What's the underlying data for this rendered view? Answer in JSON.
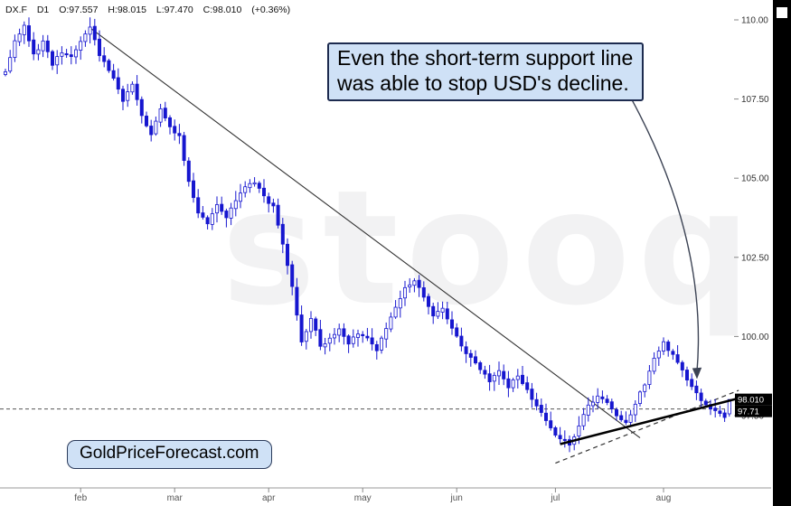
{
  "header": {
    "symbol": "DX.F",
    "interval": "D1",
    "open": "O:97.557",
    "high": "H:98.015",
    "low": "L:97.470",
    "close": "C:98.010",
    "change": "(+0.36%)"
  },
  "annotation": {
    "line1": "Even the short-term support line",
    "line2": "was able to stop USD's decline."
  },
  "badge": {
    "text": "GoldPriceForecast.com"
  },
  "watermark": "stooq",
  "colors": {
    "candle": "#1616cf",
    "annotation_bg": "#cfe1f6",
    "annotation_border": "#1d2b4f",
    "tag_bg": "#000000",
    "tag_text": "#ffffff",
    "axis_text": "#444444",
    "trendline": "#333333",
    "support": "#000000",
    "arrow": "#3c4354"
  },
  "chart_data": {
    "type": "candlestick",
    "symbol": "DX.F",
    "timeframe": "D1",
    "last_ohlc": {
      "open": 97.557,
      "high": 98.015,
      "low": 97.47,
      "close": 98.01,
      "change_pct": "+0.36%"
    },
    "y_axis": {
      "ticks": [
        {
          "label": "110.00",
          "price": 110.0
        },
        {
          "label": "107.50",
          "price": 107.5
        },
        {
          "label": "105.00",
          "price": 105.0
        },
        {
          "label": "102.50",
          "price": 102.5
        },
        {
          "label": "100.00",
          "price": 100.0
        },
        {
          "label": "97.50",
          "price": 97.5
        }
      ],
      "visible_range": [
        95.2,
        110.4
      ]
    },
    "x_axis": {
      "month_ticks": [
        {
          "label": "feb",
          "index": 16
        },
        {
          "label": "mar",
          "index": 36
        },
        {
          "label": "apr",
          "index": 56
        },
        {
          "label": "may",
          "index": 76
        },
        {
          "label": "jun",
          "index": 96
        },
        {
          "label": "jul",
          "index": 117
        },
        {
          "label": "aug",
          "index": 140
        }
      ]
    },
    "candle_count": 155,
    "close_anchors": [
      [
        0,
        108.4
      ],
      [
        2,
        109.3
      ],
      [
        4,
        109.8
      ],
      [
        6,
        108.9
      ],
      [
        8,
        109.3
      ],
      [
        10,
        108.6
      ],
      [
        12,
        109.0
      ],
      [
        14,
        108.8
      ],
      [
        16,
        109.3
      ],
      [
        18,
        109.75
      ],
      [
        20,
        108.9
      ],
      [
        23,
        108.2
      ],
      [
        25,
        107.4
      ],
      [
        27,
        108.0
      ],
      [
        29,
        107.0
      ],
      [
        31,
        106.4
      ],
      [
        33,
        107.2
      ],
      [
        35,
        106.6
      ],
      [
        37,
        106.3
      ],
      [
        39,
        104.9
      ],
      [
        41,
        103.9
      ],
      [
        43,
        103.6
      ],
      [
        45,
        104.2
      ],
      [
        47,
        103.8
      ],
      [
        49,
        104.3
      ],
      [
        51,
        104.7
      ],
      [
        53,
        104.9
      ],
      [
        55,
        104.4
      ],
      [
        57,
        104.1
      ],
      [
        59,
        102.9
      ],
      [
        61,
        101.6
      ],
      [
        63,
        99.8
      ],
      [
        65,
        100.6
      ],
      [
        67,
        99.7
      ],
      [
        69,
        99.9
      ],
      [
        71,
        100.2
      ],
      [
        73,
        99.8
      ],
      [
        75,
        100.1
      ],
      [
        77,
        100.0
      ],
      [
        79,
        99.6
      ],
      [
        81,
        100.3
      ],
      [
        83,
        100.9
      ],
      [
        85,
        101.5
      ],
      [
        87,
        101.8
      ],
      [
        89,
        101.2
      ],
      [
        91,
        100.6
      ],
      [
        93,
        100.9
      ],
      [
        95,
        100.3
      ],
      [
        97,
        99.7
      ],
      [
        99,
        99.3
      ],
      [
        101,
        99.0
      ],
      [
        103,
        98.6
      ],
      [
        105,
        98.9
      ],
      [
        107,
        98.4
      ],
      [
        109,
        98.8
      ],
      [
        111,
        98.3
      ],
      [
        113,
        97.8
      ],
      [
        115,
        97.3
      ],
      [
        117,
        96.9
      ],
      [
        119,
        96.7
      ],
      [
        120,
        96.55
      ],
      [
        122,
        97.2
      ],
      [
        124,
        97.8
      ],
      [
        126,
        98.1
      ],
      [
        128,
        97.9
      ],
      [
        130,
        97.5
      ],
      [
        132,
        97.25
      ],
      [
        134,
        97.9
      ],
      [
        136,
        98.5
      ],
      [
        138,
        99.3
      ],
      [
        140,
        99.8
      ],
      [
        142,
        99.4
      ],
      [
        144,
        98.9
      ],
      [
        146,
        98.4
      ],
      [
        148,
        98.0
      ],
      [
        150,
        97.7
      ],
      [
        152,
        97.55
      ],
      [
        153,
        97.45
      ],
      [
        154,
        98.01
      ]
    ],
    "price_tags": [
      {
        "label": "98.010",
        "price": 98.01
      },
      {
        "label": "97.71",
        "price": 97.71
      }
    ],
    "dashed_price_level": 97.71,
    "lines": {
      "downtrend": {
        "from": [
          18,
          109.75
        ],
        "to": [
          135,
          96.8
        ]
      },
      "support_solid": {
        "from": [
          118,
          96.6
        ],
        "to": [
          156,
          98.05
        ]
      },
      "support_dashed": {
        "from": [
          117,
          96.0
        ],
        "to": [
          156,
          98.3
        ]
      }
    }
  }
}
